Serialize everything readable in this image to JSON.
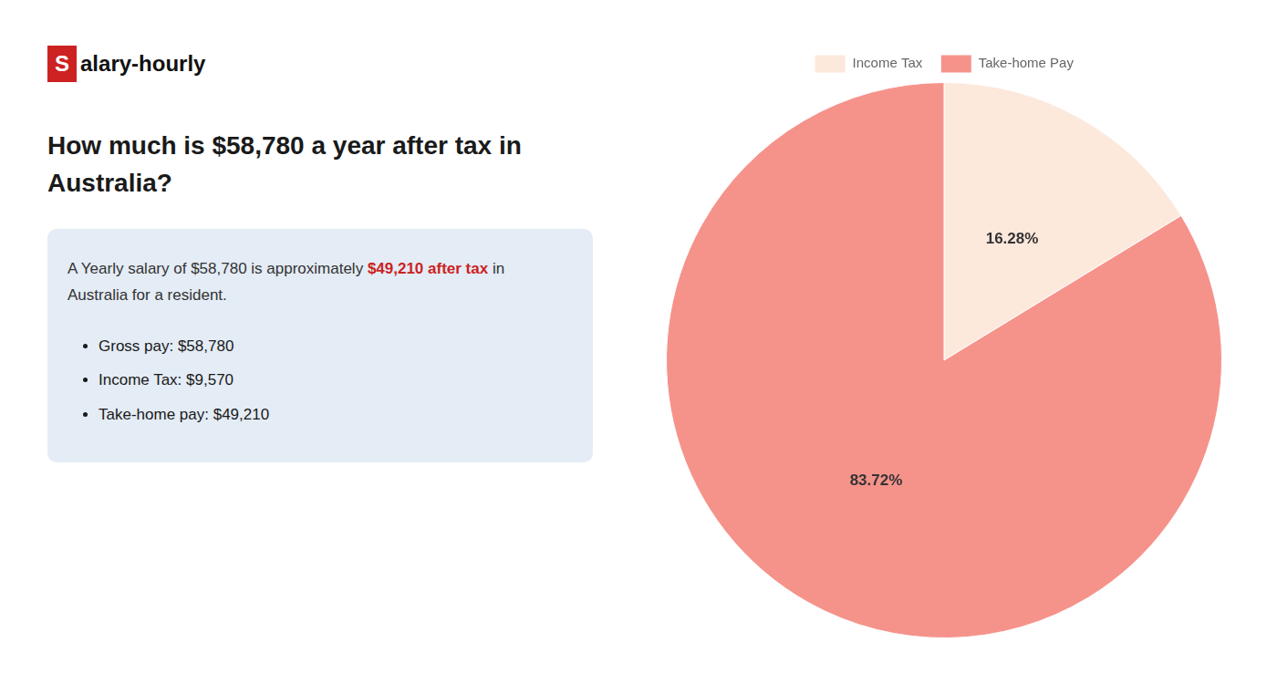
{
  "chart_data": {
    "type": "pie",
    "title": [
      "How much is $58,780 a year after tax in",
      "Australia?"
    ],
    "categories": [
      "Income Tax",
      "Take-home Pay"
    ],
    "values": [
      16.28,
      83.72
    ],
    "value_labels": [
      "16.28%",
      "83.72%"
    ],
    "data_labels": true,
    "colors": [
      "#fde8dc",
      "#f5938b"
    ],
    "legend": "top",
    "annotations": [
      {
        "text": "S",
        "color": "#cc2222"
      },
      {
        "text": "alary-hourly"
      },
      {
        "text": "A Yearly salary of $58,780 is approximately "
      },
      {
        "text": "$49,210 after tax",
        "color": "#cc2222"
      },
      {
        "text": " in"
      },
      {
        "text": "Australia for a resident."
      },
      {
        "text": "Gross pay: $58,780"
      },
      {
        "text": "Income Tax: $9,570"
      },
      {
        "text": "Take-home pay: $49,210"
      }
    ]
  }
}
